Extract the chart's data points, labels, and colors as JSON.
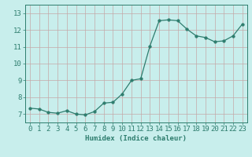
{
  "x": [
    0,
    1,
    2,
    3,
    4,
    5,
    6,
    7,
    8,
    9,
    10,
    11,
    12,
    13,
    14,
    15,
    16,
    17,
    18,
    19,
    20,
    21,
    22,
    23
  ],
  "y": [
    7.35,
    7.3,
    7.1,
    7.05,
    7.2,
    7.0,
    6.95,
    7.15,
    7.65,
    7.7,
    8.2,
    9.0,
    9.1,
    11.05,
    12.55,
    12.6,
    12.55,
    12.05,
    11.65,
    11.55,
    11.3,
    11.35,
    11.65,
    12.35
  ],
  "line_color": "#2e7d6e",
  "marker_color": "#2e7d6e",
  "bg_color": "#c8eeec",
  "grid_color": "#c4a8a8",
  "xlabel": "Humidex (Indice chaleur)",
  "ylim": [
    6.5,
    13.5
  ],
  "xlim": [
    -0.5,
    23.5
  ],
  "yticks": [
    7,
    8,
    9,
    10,
    11,
    12,
    13
  ],
  "xticks": [
    0,
    1,
    2,
    3,
    4,
    5,
    6,
    7,
    8,
    9,
    10,
    11,
    12,
    13,
    14,
    15,
    16,
    17,
    18,
    19,
    20,
    21,
    22,
    23
  ],
  "font_color": "#2e7d6e",
  "font_size": 6.5,
  "marker_size": 2.5,
  "linewidth": 0.9
}
